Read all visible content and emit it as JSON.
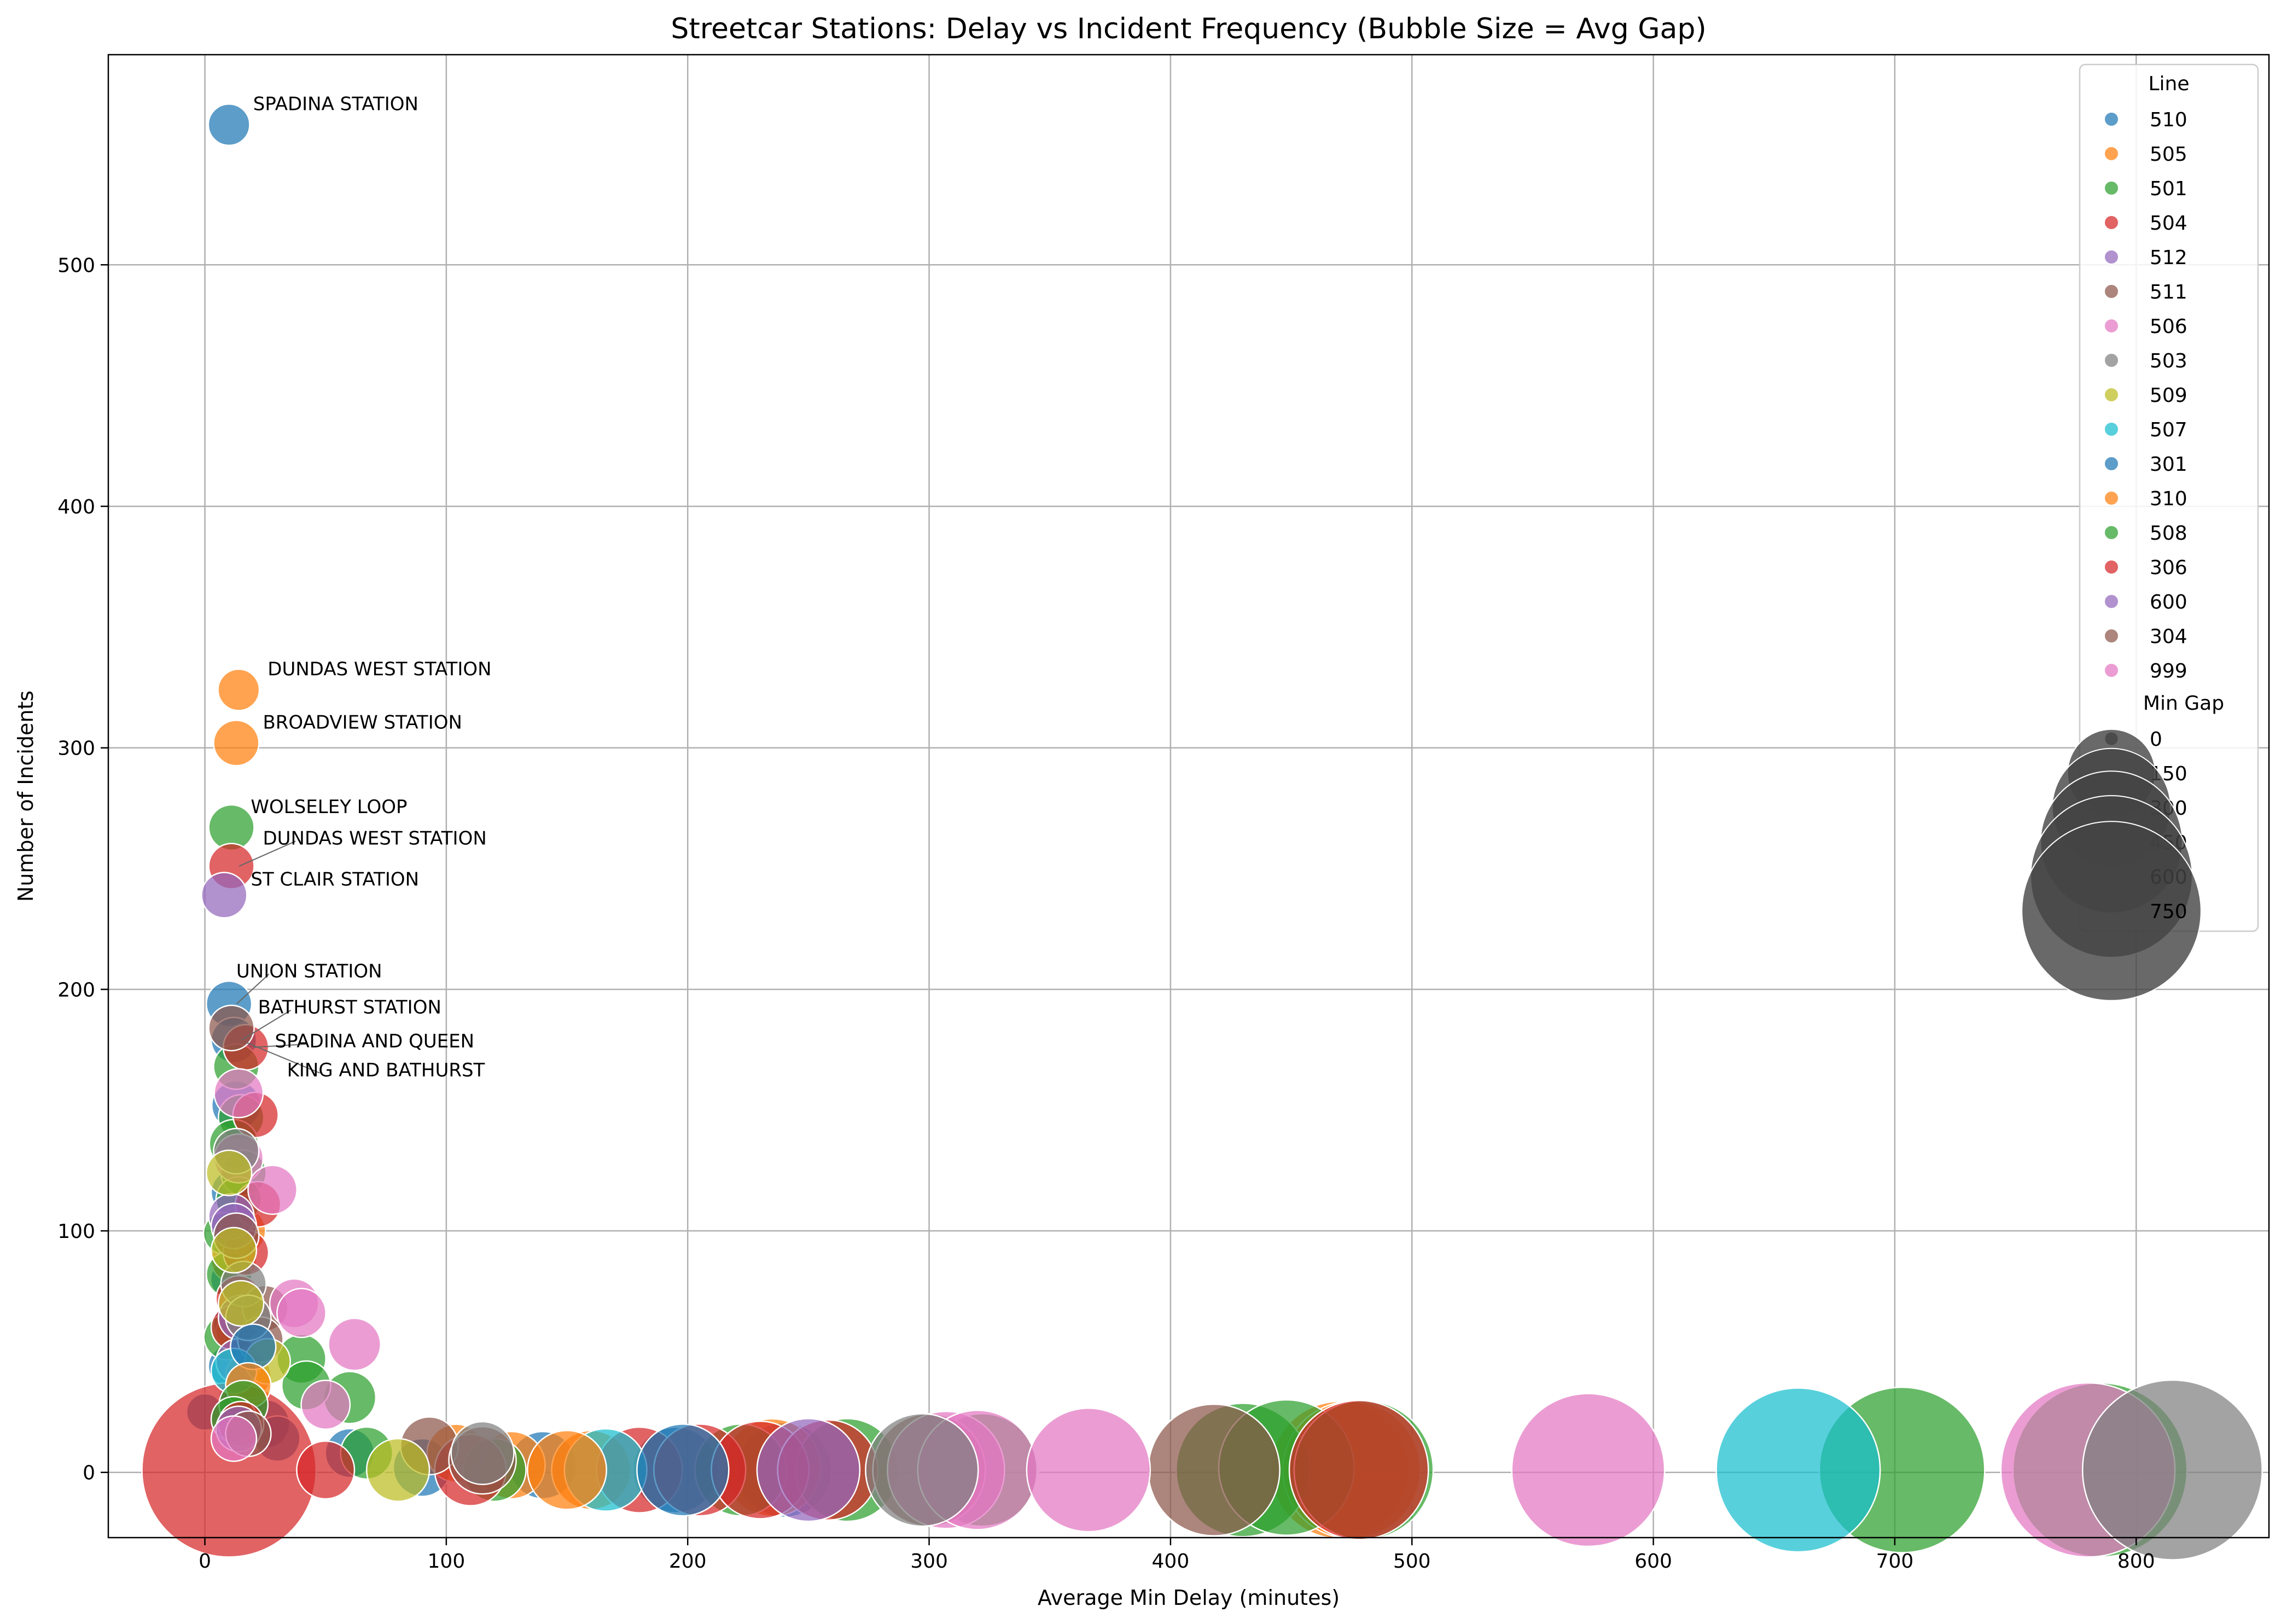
{
  "chart_data": {
    "type": "scatter",
    "title": "Streetcar Stations: Delay vs Incident Frequency (Bubble Size = Avg Gap)",
    "xlabel": "Average Min Delay (minutes)",
    "ylabel": "Number of Incidents",
    "xlim": [
      -40,
      855
    ],
    "ylim": [
      -27,
      587
    ],
    "xticks": [
      0,
      100,
      200,
      300,
      400,
      500,
      600,
      700,
      800
    ],
    "yticks": [
      0,
      100,
      200,
      300,
      400,
      500
    ],
    "grid": true,
    "legend_position": "top-right",
    "legend_hue_title": "Line",
    "legend_size_title": "Min Gap",
    "size_legend": [
      0,
      150,
      300,
      450,
      600,
      750
    ],
    "series": [
      {
        "name": "510",
        "color": "#1f77b4",
        "points": [
          [
            10,
            558,
            15
          ],
          [
            10,
            194,
            20
          ],
          [
            12,
            179,
            20
          ],
          [
            13,
            152,
            25
          ],
          [
            12,
            116,
            20
          ],
          [
            11,
            80,
            15
          ],
          [
            13,
            62,
            20
          ],
          [
            10,
            44,
            15
          ],
          [
            15,
            30,
            20
          ],
          [
            0,
            25,
            10
          ],
          [
            25,
            20,
            25
          ],
          [
            30,
            14,
            20
          ],
          [
            60,
            8,
            25
          ],
          [
            90,
            2,
            40
          ],
          [
            140,
            3,
            60
          ],
          [
            195,
            1,
            110
          ],
          [
            240,
            1,
            140
          ]
        ]
      },
      {
        "name": "505",
        "color": "#ff7f0e",
        "points": [
          [
            14,
            324,
            15
          ],
          [
            13,
            302,
            20
          ],
          [
            15,
            100,
            25
          ],
          [
            12,
            88,
            20
          ],
          [
            14,
            58,
            20
          ],
          [
            18,
            40,
            20
          ],
          [
            104,
            8,
            40
          ],
          [
            127,
            3,
            60
          ],
          [
            160,
            1,
            90
          ],
          [
            235,
            2,
            150
          ],
          [
            470,
            1,
            330
          ],
          [
            475,
            1,
            330
          ]
        ]
      },
      {
        "name": "501",
        "color": "#2ca02c",
        "points": [
          [
            11,
            267,
            20
          ],
          [
            13,
            168,
            20
          ],
          [
            15,
            147,
            20
          ],
          [
            12,
            136,
            25
          ],
          [
            16,
            124,
            20
          ],
          [
            14,
            113,
            20
          ],
          [
            8,
            99,
            15
          ],
          [
            10,
            82,
            20
          ],
          [
            9,
            56,
            20
          ],
          [
            40,
            47,
            25
          ],
          [
            60,
            31,
            30
          ],
          [
            42,
            36,
            25
          ],
          [
            67,
            8,
            30
          ],
          [
            120,
            1,
            50
          ],
          [
            222,
            1,
            130
          ],
          [
            266,
            1,
            170
          ],
          [
            322,
            1,
            210
          ],
          [
            430,
            1,
            310
          ],
          [
            448,
            2,
            320
          ],
          [
            480,
            1,
            340
          ],
          [
            703,
            1,
            500
          ],
          [
            785,
            1,
            560
          ]
        ]
      },
      {
        "name": "504",
        "color": "#d62728",
        "points": [
          [
            11,
            251,
            20
          ],
          [
            17,
            176,
            20
          ],
          [
            21,
            148,
            20
          ],
          [
            22,
            111,
            20
          ],
          [
            17,
            91,
            20
          ],
          [
            14,
            72,
            20
          ],
          [
            12,
            60,
            20
          ],
          [
            10,
            1,
            560
          ],
          [
            50,
            1,
            40
          ],
          [
            110,
            1,
            70
          ],
          [
            180,
            1,
            110
          ],
          [
            205,
            1,
            130
          ],
          [
            230,
            1,
            150
          ],
          [
            258,
            1,
            160
          ],
          [
            478,
            1,
            340
          ]
        ]
      },
      {
        "name": "512",
        "color": "#9467bd",
        "points": [
          [
            8,
            239,
            20
          ],
          [
            11,
            106,
            20
          ],
          [
            12,
            102,
            20
          ],
          [
            15,
            64,
            20
          ],
          [
            14,
            46,
            20
          ],
          [
            250,
            1,
            170
          ]
        ]
      },
      {
        "name": "511",
        "color": "#8c564b",
        "points": [
          [
            11,
            184,
            20
          ],
          [
            13,
            98,
            20
          ],
          [
            25,
            68,
            20
          ],
          [
            23,
            55,
            20
          ],
          [
            93,
            11,
            40
          ],
          [
            115,
            5,
            60
          ],
          [
            300,
            1,
            210
          ],
          [
            418,
            1,
            300
          ]
        ]
      },
      {
        "name": "506",
        "color": "#e377c2",
        "points": [
          [
            14,
            157,
            25
          ],
          [
            14,
            130,
            25
          ],
          [
            28,
            117,
            25
          ],
          [
            37,
            70,
            25
          ],
          [
            40,
            66,
            25
          ],
          [
            62,
            53,
            30
          ],
          [
            50,
            28,
            25
          ],
          [
            307,
            1,
            230
          ],
          [
            320,
            1,
            240
          ],
          [
            366,
            1,
            260
          ],
          [
            573,
            1,
            420
          ],
          [
            780,
            1,
            560
          ]
        ]
      },
      {
        "name": "503",
        "color": "#7f7f7f",
        "points": [
          [
            13,
            133,
            20
          ],
          [
            16,
            78,
            20
          ],
          [
            18,
            64,
            20
          ],
          [
            115,
            8,
            50
          ],
          [
            297,
            1,
            210
          ],
          [
            815,
            1,
            600
          ]
        ]
      },
      {
        "name": "509",
        "color": "#bcbd22",
        "points": [
          [
            10,
            124,
            20
          ],
          [
            12,
            92,
            20
          ],
          [
            15,
            70,
            20
          ],
          [
            26,
            46,
            20
          ],
          [
            80,
            1,
            50
          ]
        ]
      },
      {
        "name": "507",
        "color": "#17becf",
        "points": [
          [
            12,
            42,
            20
          ],
          [
            166,
            1,
            100
          ],
          [
            660,
            1,
            490
          ]
        ]
      },
      {
        "name": "301",
        "color": "#1f77b4",
        "points": [
          [
            20,
            52,
            20
          ],
          [
            198,
            1,
            130
          ]
        ]
      },
      {
        "name": "310",
        "color": "#ff7f0e",
        "points": [
          [
            18,
            36,
            20
          ],
          [
            150,
            1,
            90
          ]
        ]
      },
      {
        "name": "508",
        "color": "#2ca02c",
        "points": [
          [
            16,
            28,
            25
          ],
          [
            12,
            22,
            20
          ]
        ]
      },
      {
        "name": "306",
        "color": "#d62728",
        "points": [
          [
            15,
            20,
            20
          ]
        ]
      },
      {
        "name": "600",
        "color": "#9467bd",
        "points": [
          [
            14,
            18,
            20
          ]
        ]
      },
      {
        "name": "304",
        "color": "#8c564b",
        "points": [
          [
            18,
            16,
            20
          ]
        ]
      },
      {
        "name": "999",
        "color": "#e377c2",
        "points": [
          [
            12,
            14,
            20
          ]
        ]
      }
    ],
    "annotations": [
      {
        "text": "SPADINA STATION",
        "x": 10,
        "y": 558,
        "tx": 20,
        "ty": 564
      },
      {
        "text": "DUNDAS WEST STATION",
        "x": 14,
        "y": 324,
        "tx": 26,
        "ty": 330
      },
      {
        "text": "BROADVIEW STATION",
        "x": 13,
        "y": 302,
        "tx": 24,
        "ty": 308
      },
      {
        "text": "WOLSELEY LOOP",
        "x": 11,
        "y": 267,
        "tx": 19,
        "ty": 273
      },
      {
        "text": "DUNDAS WEST STATION",
        "x": 11,
        "y": 251,
        "tx": 24,
        "ty": 260,
        "arrow": true
      },
      {
        "text": "ST CLAIR STATION",
        "x": 8,
        "y": 239,
        "tx": 19,
        "ty": 243
      },
      {
        "text": "UNION STATION",
        "x": 10,
        "y": 194,
        "tx": 13,
        "ty": 205,
        "arrow": true
      },
      {
        "text": "BATHURST STATION",
        "x": 12,
        "y": 179,
        "tx": 22,
        "ty": 190,
        "arrow": true
      },
      {
        "text": "SPADINA AND QUEEN",
        "x": 17,
        "y": 176,
        "tx": 29,
        "ty": 176,
        "arrow": true
      },
      {
        "text": "KING AND BATHURST",
        "x": 14,
        "y": 178,
        "tx": 34,
        "ty": 164,
        "arrow": true
      }
    ]
  }
}
